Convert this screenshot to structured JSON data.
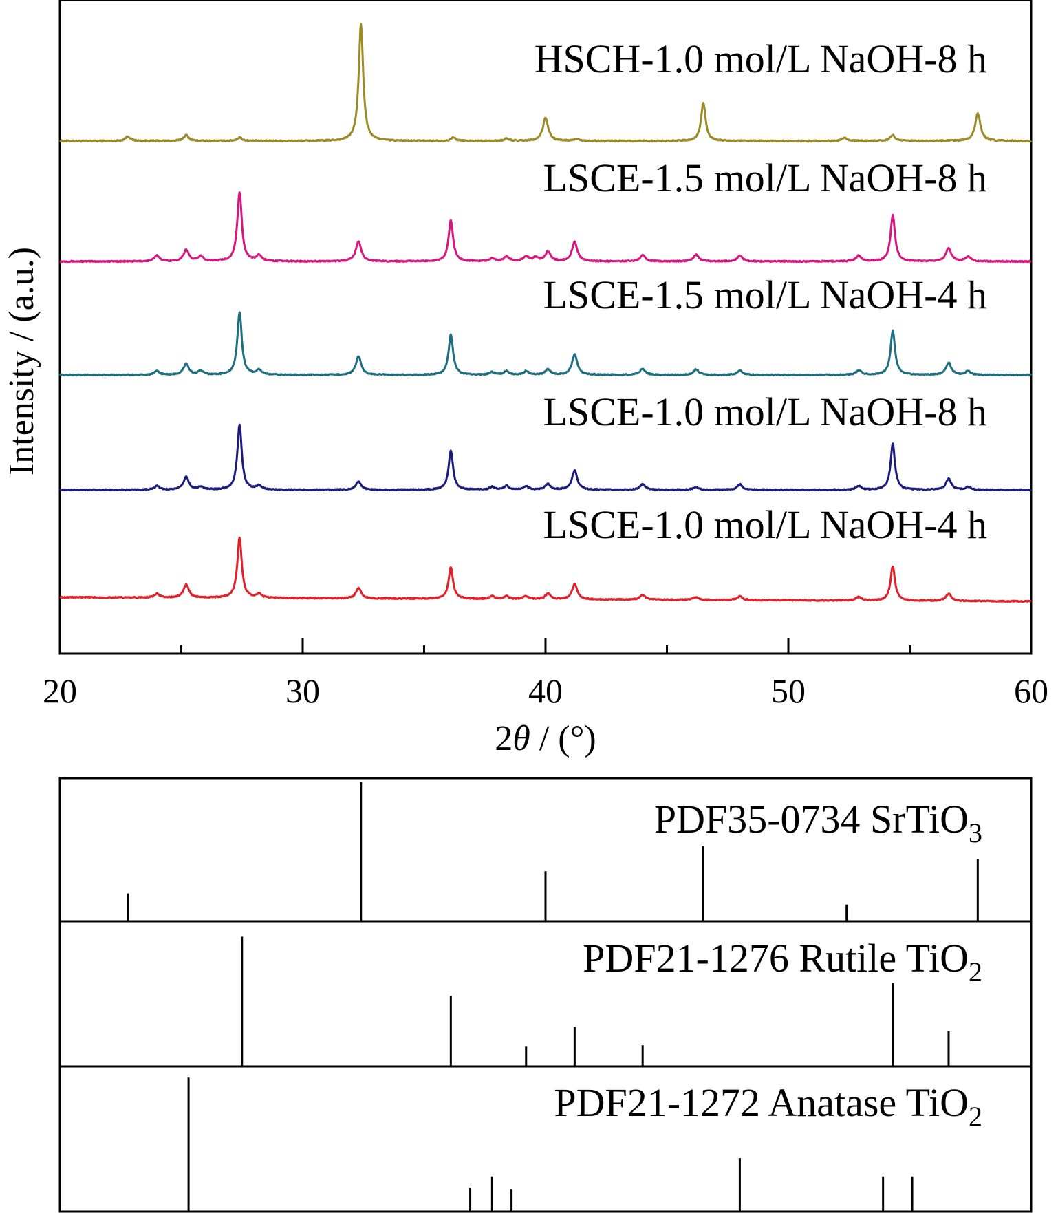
{
  "chart_data": [
    {
      "type": "line",
      "xlabel_prefix": "2",
      "xlabel_symbol": "θ",
      "xlabel_suffix": " / (°)",
      "ylabel": "Intensity / (a.u.)",
      "xlim": [
        20,
        60
      ],
      "xticks": [
        20,
        30,
        40,
        50,
        60
      ],
      "xticks_minor": [
        25,
        35,
        45,
        55
      ],
      "yticks": [],
      "grid": false,
      "series": [
        {
          "name": "HSCH-1.0 mol/L NaOH-8 h",
          "color": "#9b8a26",
          "peaks": [
            [
              22.8,
              0.04
            ],
            [
              25.2,
              0.05
            ],
            [
              27.4,
              0.03
            ],
            [
              32.4,
              1.0
            ],
            [
              36.2,
              0.03
            ],
            [
              38.4,
              0.02
            ],
            [
              40.0,
              0.2
            ],
            [
              41.3,
              0.02
            ],
            [
              46.5,
              0.33
            ],
            [
              52.3,
              0.03
            ],
            [
              54.3,
              0.05
            ],
            [
              57.8,
              0.24
            ]
          ]
        },
        {
          "name": "LSCE-1.5 mol/L NaOH-8 h",
          "color": "#d6177f",
          "peaks": [
            [
              24.0,
              0.06
            ],
            [
              25.2,
              0.12
            ],
            [
              25.8,
              0.05
            ],
            [
              27.4,
              0.72
            ],
            [
              28.2,
              0.06
            ],
            [
              32.3,
              0.21
            ],
            [
              36.1,
              0.43
            ],
            [
              37.8,
              0.03
            ],
            [
              38.4,
              0.05
            ],
            [
              39.2,
              0.05
            ],
            [
              39.6,
              0.04
            ],
            [
              40.1,
              0.1
            ],
            [
              41.2,
              0.2
            ],
            [
              44.0,
              0.07
            ],
            [
              46.2,
              0.07
            ],
            [
              48.0,
              0.06
            ],
            [
              52.9,
              0.06
            ],
            [
              54.3,
              0.48
            ],
            [
              56.6,
              0.14
            ],
            [
              57.4,
              0.05
            ]
          ]
        },
        {
          "name": "LSCE-1.5 mol/L NaOH-4 h",
          "color": "#1e6e82",
          "peaks": [
            [
              24.0,
              0.04
            ],
            [
              25.2,
              0.12
            ],
            [
              25.8,
              0.04
            ],
            [
              27.4,
              0.68
            ],
            [
              28.2,
              0.05
            ],
            [
              32.3,
              0.2
            ],
            [
              36.1,
              0.44
            ],
            [
              37.8,
              0.03
            ],
            [
              38.4,
              0.04
            ],
            [
              39.2,
              0.04
            ],
            [
              40.1,
              0.06
            ],
            [
              41.2,
              0.22
            ],
            [
              44.0,
              0.07
            ],
            [
              46.2,
              0.06
            ],
            [
              48.0,
              0.05
            ],
            [
              52.9,
              0.05
            ],
            [
              54.3,
              0.48
            ],
            [
              56.6,
              0.13
            ],
            [
              57.4,
              0.04
            ]
          ]
        },
        {
          "name": "LSCE-1.0 mol/L NaOH-8 h",
          "color": "#1c1c7e",
          "peaks": [
            [
              24.0,
              0.04
            ],
            [
              25.2,
              0.14
            ],
            [
              25.8,
              0.03
            ],
            [
              27.4,
              0.71
            ],
            [
              28.2,
              0.04
            ],
            [
              32.3,
              0.09
            ],
            [
              36.1,
              0.43
            ],
            [
              37.8,
              0.03
            ],
            [
              38.4,
              0.04
            ],
            [
              39.2,
              0.04
            ],
            [
              40.1,
              0.06
            ],
            [
              41.2,
              0.21
            ],
            [
              44.0,
              0.06
            ],
            [
              46.2,
              0.03
            ],
            [
              48.0,
              0.06
            ],
            [
              52.9,
              0.04
            ],
            [
              54.3,
              0.5
            ],
            [
              56.6,
              0.12
            ],
            [
              57.4,
              0.03
            ]
          ]
        },
        {
          "name": "LSCE-1.0 mol/L NaOH-4 h",
          "color": "#e3202a",
          "peaks": [
            [
              24.0,
              0.04
            ],
            [
              25.2,
              0.14
            ],
            [
              27.4,
              0.64
            ],
            [
              28.2,
              0.04
            ],
            [
              32.3,
              0.11
            ],
            [
              36.1,
              0.34
            ],
            [
              37.8,
              0.03
            ],
            [
              38.4,
              0.03
            ],
            [
              39.2,
              0.03
            ],
            [
              40.1,
              0.06
            ],
            [
              41.2,
              0.16
            ],
            [
              44.0,
              0.05
            ],
            [
              46.2,
              0.03
            ],
            [
              48.0,
              0.04
            ],
            [
              52.9,
              0.04
            ],
            [
              54.3,
              0.37
            ],
            [
              56.6,
              0.08
            ]
          ]
        }
      ]
    },
    {
      "type": "bar",
      "xlim": [
        20,
        60
      ],
      "grid": false,
      "references": [
        {
          "name": "PDF35-0734 SrTiO3",
          "label_main": "PDF35-0734 SrTiO",
          "label_sub": "3",
          "lines": [
            [
              22.8,
              0.2
            ],
            [
              32.4,
              1.0
            ],
            [
              40.0,
              0.36
            ],
            [
              46.5,
              0.54
            ],
            [
              52.4,
              0.12
            ],
            [
              57.8,
              0.45
            ]
          ]
        },
        {
          "name": "PDF21-1276 Rutile TiO2",
          "label_main": "PDF21-1276 Rutile TiO",
          "label_sub": "2",
          "lines": [
            [
              27.5,
              0.92
            ],
            [
              36.1,
              0.5
            ],
            [
              39.2,
              0.14
            ],
            [
              41.2,
              0.28
            ],
            [
              44.0,
              0.15
            ],
            [
              54.3,
              0.59
            ],
            [
              56.6,
              0.25
            ]
          ]
        },
        {
          "name": "PDF21-1272 Anatase TiO2",
          "label_main": "PDF21-1272 Anatase TiO",
          "label_sub": "2",
          "lines": [
            [
              25.3,
              0.95
            ],
            [
              36.9,
              0.17
            ],
            [
              37.8,
              0.25
            ],
            [
              38.6,
              0.16
            ],
            [
              48.0,
              0.38
            ],
            [
              53.9,
              0.25
            ],
            [
              55.1,
              0.25
            ]
          ]
        }
      ]
    }
  ]
}
